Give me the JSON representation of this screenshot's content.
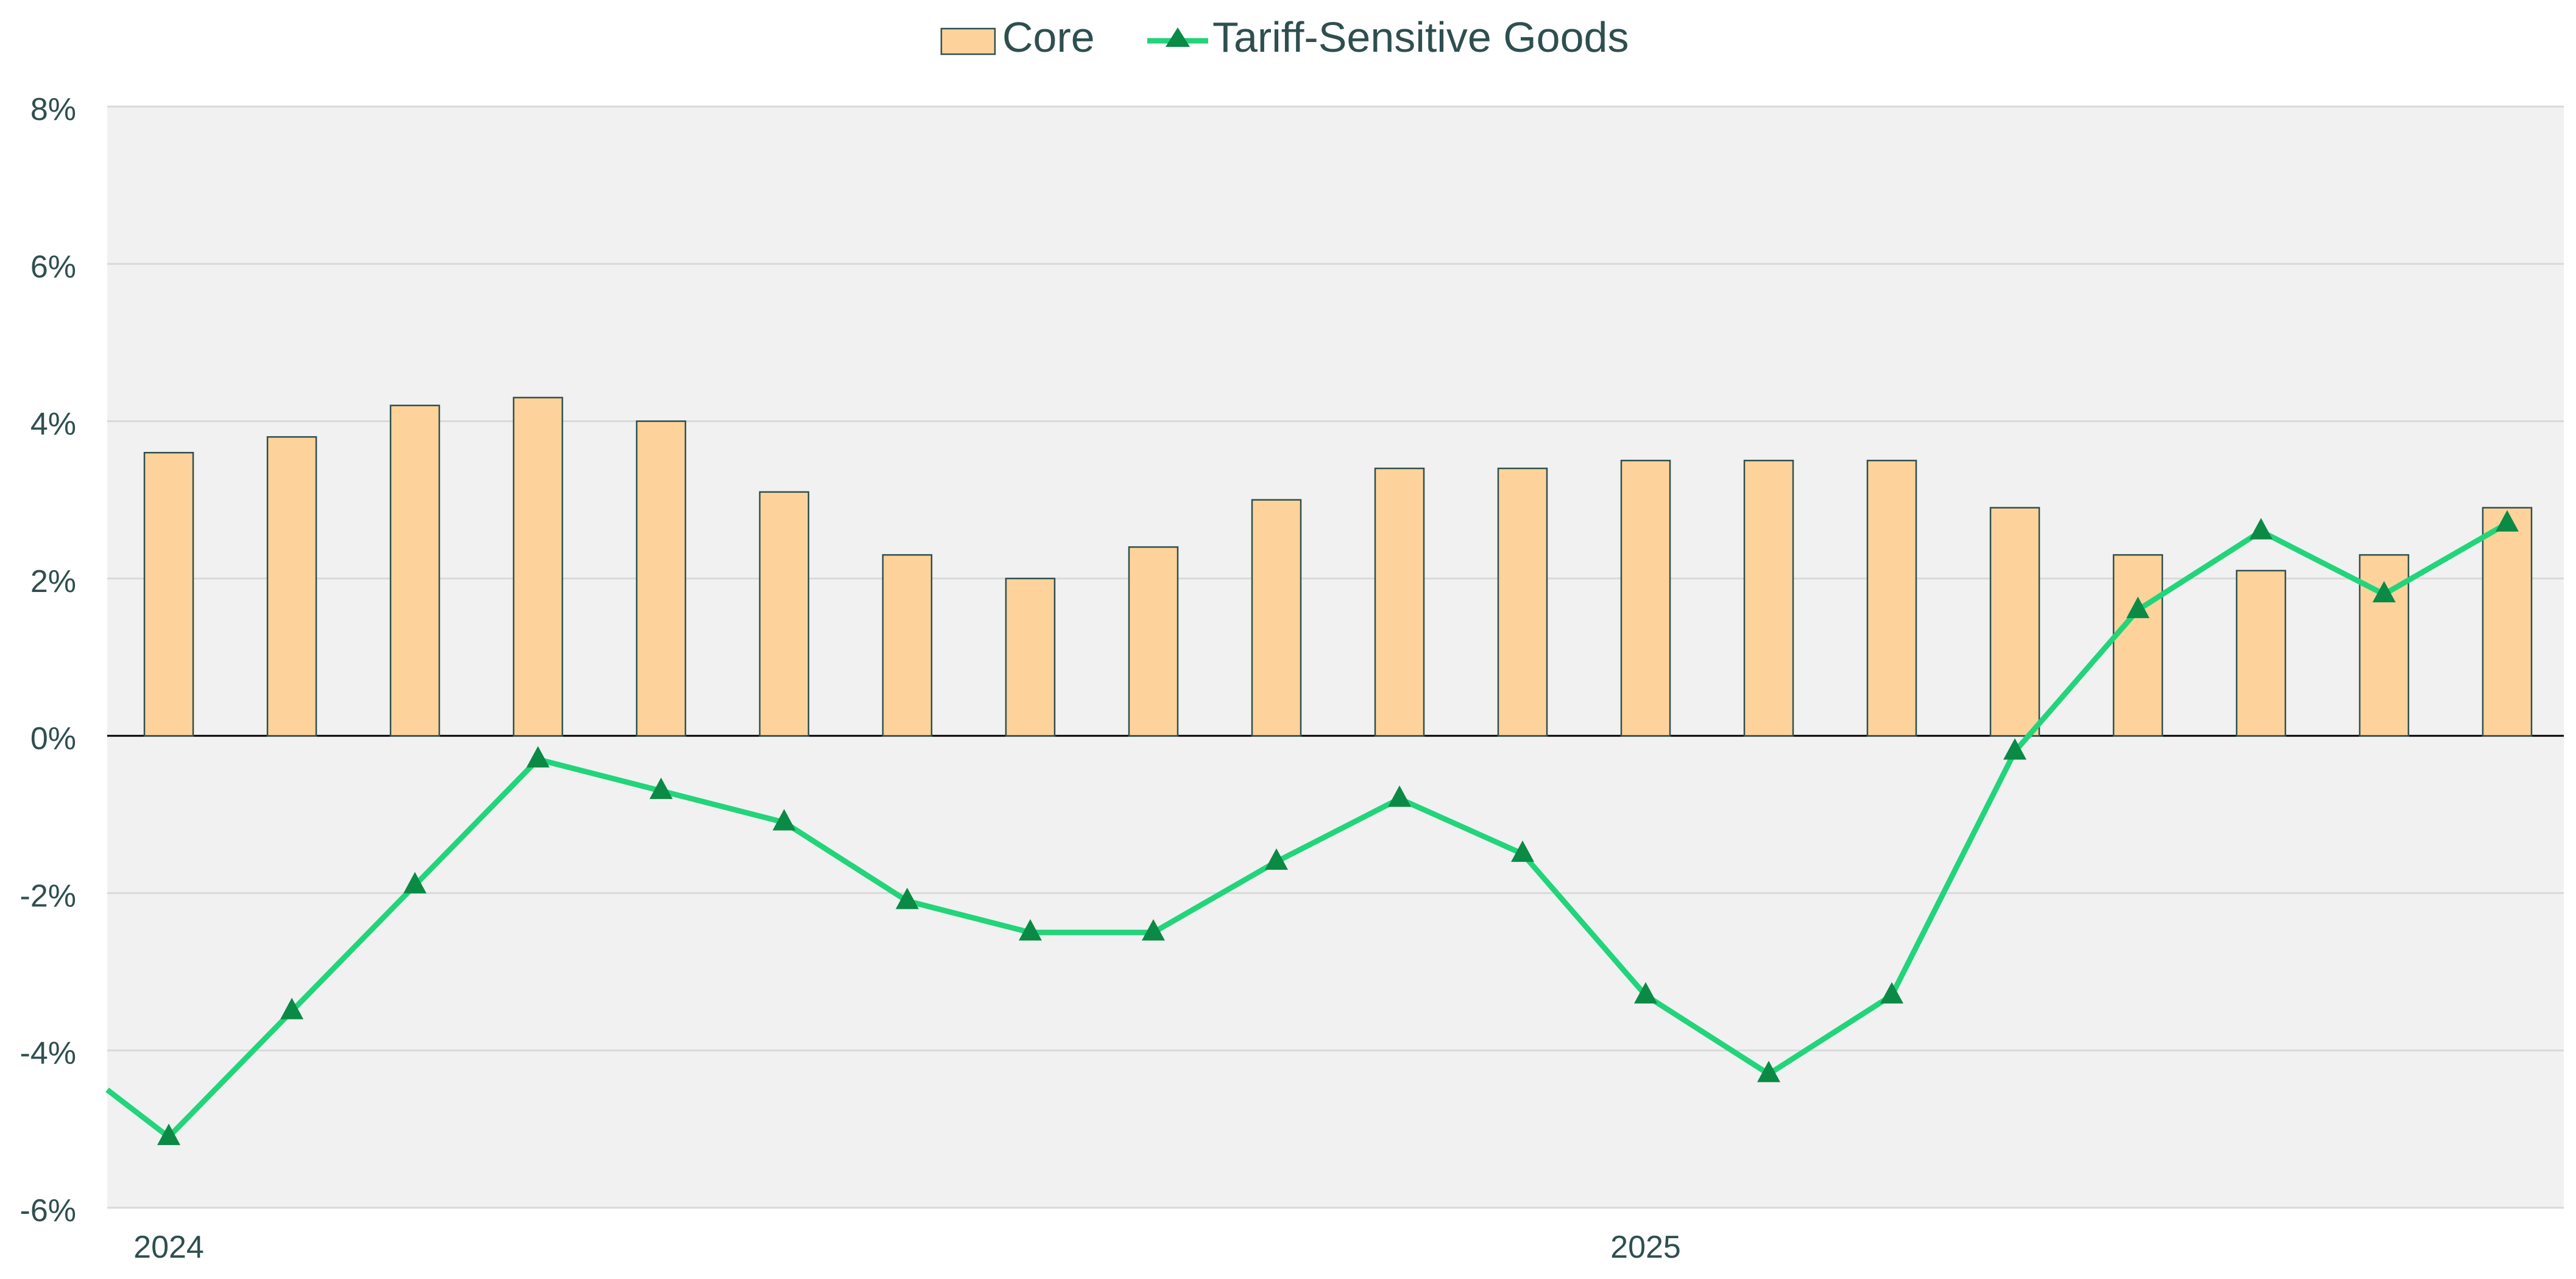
{
  "chart_data": {
    "type": "bar+line",
    "title": "",
    "xlabel": "",
    "ylabel": "",
    "ylim": [
      -6,
      8
    ],
    "y_ticks": [
      -6,
      -4,
      -2,
      0,
      2,
      4,
      6,
      8
    ],
    "y_tick_labels": [
      "-6%",
      "-4%",
      "-2%",
      "0%",
      "2%",
      "4%",
      "6%",
      "8%"
    ],
    "x_tick_labels": [
      {
        "label": "2024",
        "at_index": 0
      },
      {
        "label": "2025",
        "at_index": 12
      }
    ],
    "grid": true,
    "legend_position": "top-center",
    "colors": {
      "plot_background": "#f1f1f1",
      "gridline": "#d9d9d9",
      "zero_line": "#000000",
      "bar_fill": "#fdd39b",
      "bar_stroke": "#2f4f4f",
      "line": "#22d47a",
      "marker": "#0a8a45",
      "text": "#2f4f4f"
    },
    "series": [
      {
        "name": "Core",
        "type": "bar",
        "values": [
          3.6,
          3.8,
          4.2,
          4.3,
          4.0,
          3.1,
          2.3,
          2.0,
          2.4,
          3.0,
          3.4,
          3.4,
          3.5,
          3.5,
          3.5,
          2.9,
          2.3,
          2.1,
          2.3,
          2.9
        ]
      },
      {
        "name": "Tariff-Sensitive Goods",
        "type": "line",
        "marker": "triangle",
        "start_value": -4.5,
        "values": [
          -5.1,
          -3.5,
          -1.9,
          -0.3,
          -0.7,
          -1.1,
          -2.1,
          -2.5,
          -2.5,
          -1.6,
          -0.8,
          -1.5,
          -3.3,
          -4.3,
          -3.3,
          -0.2,
          1.6,
          2.6,
          1.8,
          2.7
        ]
      }
    ]
  }
}
